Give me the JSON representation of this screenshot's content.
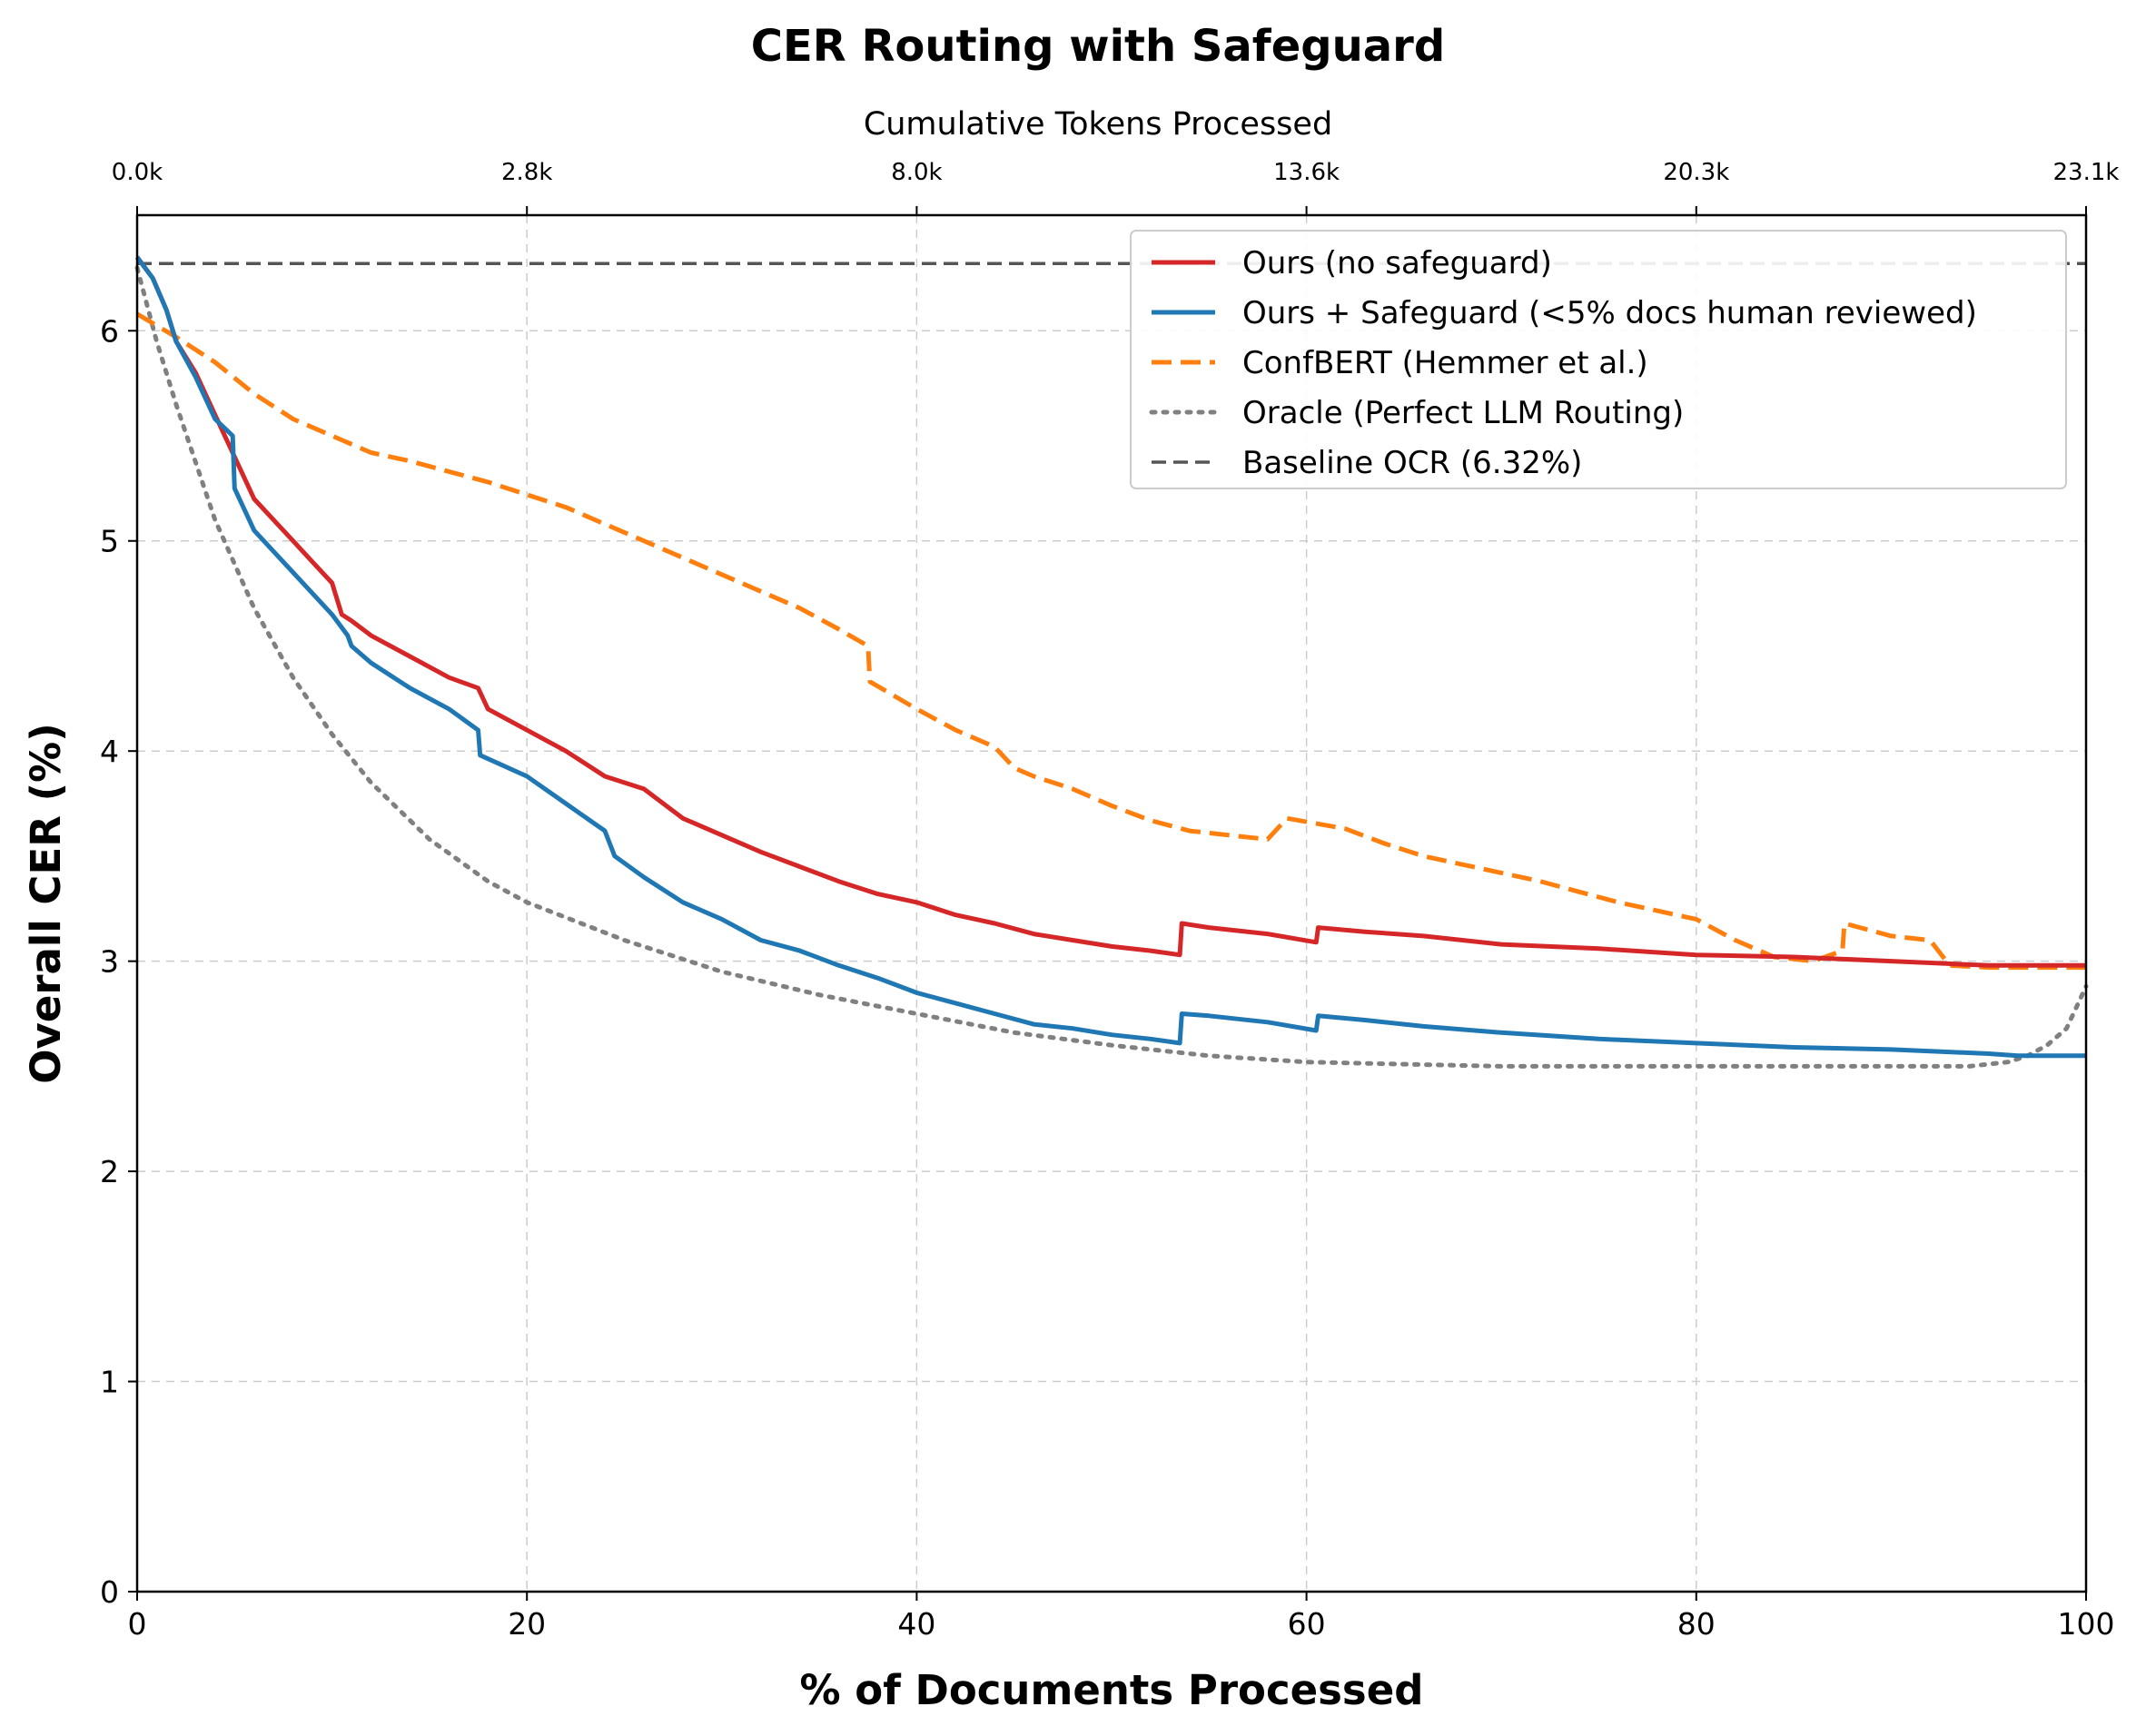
{
  "chart_data": {
    "type": "line",
    "title": "CER Routing with Safeguard",
    "xlabel": "% of Documents Processed",
    "ylabel": "Overall CER (%)",
    "top_xlabel": "Cumulative Tokens Processed",
    "xlim": [
      0,
      100
    ],
    "ylim": [
      0,
      6.55
    ],
    "xticks": [
      0,
      20,
      40,
      60,
      80,
      100
    ],
    "xtick_labels": [
      "0",
      "20",
      "40",
      "60",
      "80",
      "100"
    ],
    "yticks": [
      0,
      1,
      2,
      3,
      4,
      5,
      6
    ],
    "ytick_labels": [
      "0",
      "1",
      "2",
      "3",
      "4",
      "5",
      "6"
    ],
    "top_xticks": [
      0,
      20,
      40,
      60,
      80,
      100
    ],
    "top_xtick_labels": [
      "0.0k",
      "2.8k",
      "8.0k",
      "13.6k",
      "20.3k",
      "23.1k"
    ],
    "grid": true,
    "legend_position": "top-right",
    "baseline": 6.32,
    "colors": {
      "ours": "#d62728",
      "safeguard": "#1f77b4",
      "confbert": "#ff7f0e",
      "oracle": "#808080",
      "baseline": "#555555",
      "grid": "#cccccc"
    },
    "series": [
      {
        "name": "Ours (no safeguard)",
        "style": "solid",
        "color": "#d62728",
        "x": [
          0,
          0.8,
          1.5,
          2,
          3,
          4,
          5,
          6,
          7,
          8,
          9,
          10,
          10.5,
          11,
          12,
          14,
          16,
          17.5,
          18,
          20,
          22,
          24,
          26,
          28,
          30,
          32,
          34,
          36,
          38,
          40,
          42,
          44,
          46,
          48,
          50,
          52,
          53.5,
          53.6,
          55,
          58,
          60.5,
          60.6,
          63,
          66,
          70,
          75,
          80,
          85,
          90,
          95,
          100
        ],
        "y": [
          6.35,
          6.25,
          6.1,
          5.95,
          5.8,
          5.6,
          5.4,
          5.2,
          5.1,
          5.0,
          4.9,
          4.8,
          4.65,
          4.62,
          4.55,
          4.45,
          4.35,
          4.3,
          4.2,
          4.1,
          4.0,
          3.88,
          3.82,
          3.68,
          3.6,
          3.52,
          3.45,
          3.38,
          3.32,
          3.28,
          3.22,
          3.18,
          3.13,
          3.1,
          3.07,
          3.05,
          3.03,
          3.18,
          3.16,
          3.13,
          3.09,
          3.16,
          3.14,
          3.12,
          3.08,
          3.06,
          3.03,
          3.02,
          3.0,
          2.98,
          2.98
        ]
      },
      {
        "name": "Ours + Safeguard (<5% docs human reviewed)",
        "style": "solid",
        "color": "#1f77b4",
        "x": [
          0,
          0.8,
          1.5,
          2,
          3,
          4,
          4.9,
          5,
          6,
          7,
          8,
          9,
          10,
          10.8,
          11,
          12,
          14,
          16,
          17.5,
          17.6,
          20,
          22,
          24,
          24.5,
          26,
          28,
          30,
          32,
          34,
          36,
          38,
          40,
          42,
          44,
          46,
          48,
          50,
          52,
          53.5,
          53.6,
          55,
          58,
          60.5,
          60.6,
          63,
          66,
          70,
          75,
          80,
          85,
          90,
          95,
          96.5,
          100
        ],
        "y": [
          6.35,
          6.25,
          6.1,
          5.95,
          5.78,
          5.58,
          5.5,
          5.25,
          5.05,
          4.95,
          4.85,
          4.75,
          4.65,
          4.55,
          4.5,
          4.42,
          4.3,
          4.2,
          4.1,
          3.98,
          3.88,
          3.75,
          3.62,
          3.5,
          3.4,
          3.28,
          3.2,
          3.1,
          3.05,
          2.98,
          2.92,
          2.85,
          2.8,
          2.75,
          2.7,
          2.68,
          2.65,
          2.63,
          2.61,
          2.75,
          2.74,
          2.71,
          2.67,
          2.74,
          2.72,
          2.69,
          2.66,
          2.63,
          2.61,
          2.59,
          2.58,
          2.56,
          2.55,
          2.55
        ]
      },
      {
        "name": "ConfBERT (Hemmer et al.)",
        "style": "dashed",
        "color": "#ff7f0e",
        "x": [
          0,
          2,
          4,
          6,
          8,
          10,
          12,
          14,
          16,
          18,
          20,
          22,
          24,
          26,
          28,
          30,
          32,
          34,
          36,
          37.5,
          37.6,
          40,
          42,
          44,
          45,
          46,
          48,
          50,
          52,
          54,
          56,
          58,
          59,
          62,
          64,
          66,
          68,
          70,
          72,
          74,
          76,
          78,
          80,
          82,
          84,
          86,
          87.5,
          87.6,
          90,
          92,
          93,
          95,
          100
        ],
        "y": [
          6.08,
          5.97,
          5.85,
          5.7,
          5.58,
          5.5,
          5.42,
          5.38,
          5.33,
          5.28,
          5.22,
          5.16,
          5.08,
          5.0,
          4.92,
          4.84,
          4.76,
          4.68,
          4.58,
          4.5,
          4.33,
          4.2,
          4.1,
          4.02,
          3.92,
          3.88,
          3.82,
          3.74,
          3.67,
          3.62,
          3.6,
          3.58,
          3.68,
          3.63,
          3.56,
          3.5,
          3.46,
          3.42,
          3.38,
          3.33,
          3.28,
          3.24,
          3.2,
          3.1,
          3.02,
          3.0,
          3.05,
          3.18,
          3.12,
          3.1,
          2.98,
          2.97,
          2.97
        ]
      },
      {
        "name": "Oracle (Perfect LLM Routing)",
        "style": "dotted",
        "color": "#808080",
        "x": [
          0,
          1,
          2,
          4,
          6,
          8,
          10,
          12,
          15,
          18,
          20,
          25,
          30,
          35,
          40,
          45,
          50,
          55,
          60,
          65,
          70,
          75,
          80,
          85,
          90,
          94,
          96,
          97,
          98,
          99,
          100
        ],
        "y": [
          6.3,
          5.95,
          5.65,
          5.1,
          4.68,
          4.35,
          4.08,
          3.85,
          3.58,
          3.38,
          3.28,
          3.1,
          2.95,
          2.84,
          2.75,
          2.66,
          2.6,
          2.55,
          2.52,
          2.51,
          2.5,
          2.5,
          2.5,
          2.5,
          2.5,
          2.5,
          2.52,
          2.55,
          2.6,
          2.68,
          2.88
        ]
      },
      {
        "name": "Baseline OCR (6.32%)",
        "style": "dashed",
        "color": "#555555",
        "x": [
          0,
          100
        ],
        "y": [
          6.32,
          6.32
        ]
      }
    ]
  }
}
